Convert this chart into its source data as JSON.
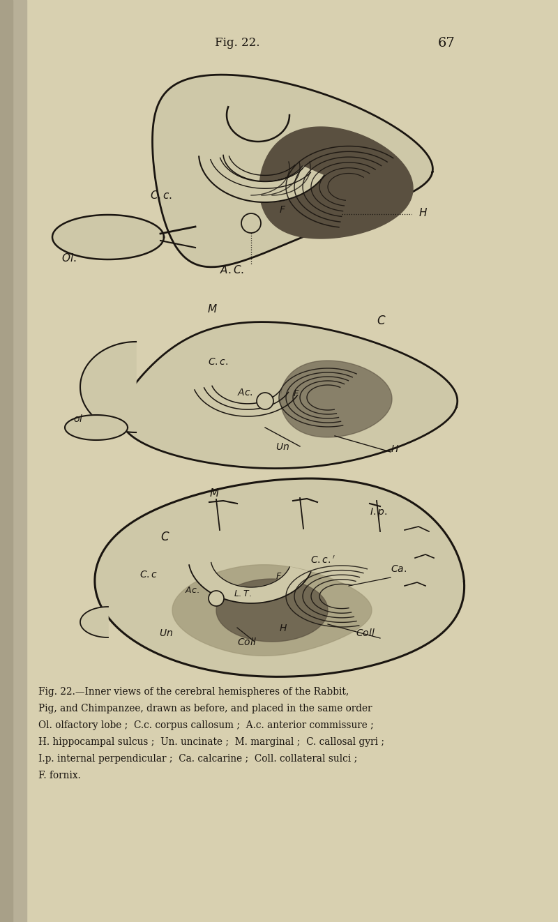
{
  "bg_color": "#d8d0b0",
  "page_bg": "#d4cca8",
  "ink_color": "#1a1510",
  "title": "Fig. 22.",
  "page_number": "67",
  "title_fontsize": 12,
  "page_num_fontsize": 14,
  "caption_lines": [
    "Fig. 22.—Inner views of the cerebral hemispheres of the Rabbit,",
    "Pig, and Chimpanzee, drawn as before, and placed in the same order",
    "Ol. olfactory lobe ;  C.c. corpus callosum ;  A.c. anterior commissure ;",
    "H. hippocampal sulcus ;  Un. uncinate ;  M. marginal ;  C. callosal gyri ;",
    "I.p. internal perpendicular ;  Ca. calcarine ;  Coll. collateral sulci ;",
    "F. fornix."
  ],
  "caption_fontsize": 9.8,
  "brain_fill": "#cec8a8",
  "dark_fill": "#5a5040",
  "mid_fill": "#a09878"
}
